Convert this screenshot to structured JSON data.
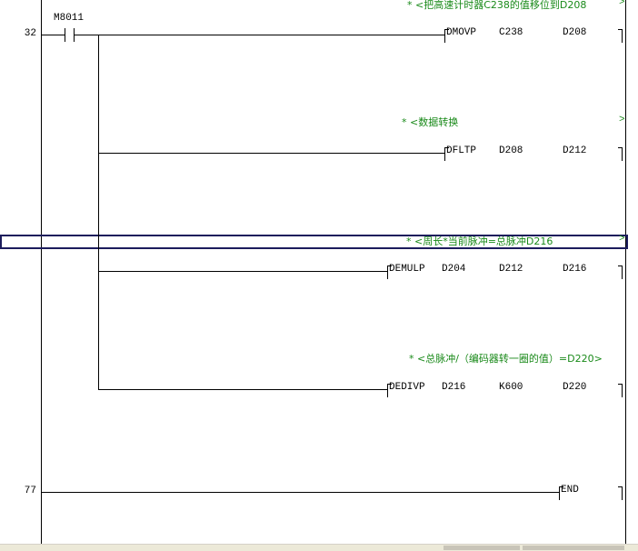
{
  "colors": {
    "comment": "#1a8a1a",
    "selection": "#1c1c5c"
  },
  "steps": [
    {
      "num": "32"
    },
    {
      "num": "77"
    }
  ],
  "contact": {
    "label": "M8011",
    "icon": "normally-open-contact-icon"
  },
  "rungs": [
    {
      "comment": "* <把高速计时器C238的值移位到D208",
      "comment_end": ">",
      "instruction": "DMOVP",
      "operands": [
        "C238",
        "D208"
      ]
    },
    {
      "comment": "* <数据转换",
      "comment_end": ">",
      "instruction": "DFLTP",
      "operands": [
        "D208",
        "D212"
      ]
    },
    {
      "comment": "* <周长*当前脉冲=总脉冲D216",
      "comment_end": ">",
      "instruction": "DEMULP",
      "operands": [
        "D204",
        "D212",
        "D216"
      ]
    },
    {
      "comment": "* <总脉冲/（编码器转一圈的值）=D220>",
      "comment_end": "",
      "instruction": "DEDIVP",
      "operands": [
        "D216",
        "K600",
        "D220"
      ]
    }
  ],
  "end": {
    "instruction": "END"
  }
}
